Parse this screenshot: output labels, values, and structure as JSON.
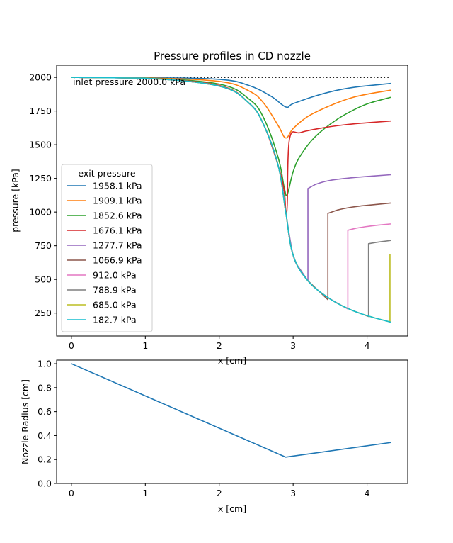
{
  "chart_data": [
    {
      "type": "line",
      "title": "Pressure profiles in CD nozzle",
      "xlabel": "x [cm]",
      "ylabel": "pressure [kPa]",
      "xlim": [
        -0.2,
        4.55
      ],
      "ylim": [
        80,
        2090
      ],
      "xticks": [
        "0",
        "1",
        "2",
        "3",
        "4"
      ],
      "yticks": [
        "250",
        "500",
        "750",
        "1000",
        "1250",
        "1500",
        "1750",
        "2000"
      ],
      "grid": false,
      "legend_title": "exit pressure",
      "legend_position": "lower-left",
      "annotation": "inlet pressure 2000.0 kPa",
      "inlet_line": {
        "value": 2000,
        "x": [
          0,
          4.32
        ],
        "style": "dotted",
        "color": "#000000"
      },
      "common_branch": {
        "x": [
          0,
          0.5,
          1.0,
          1.5,
          1.8,
          2.0,
          2.2,
          2.4,
          2.5,
          2.6,
          2.7,
          2.8,
          2.85,
          2.9
        ],
        "y": [
          2000,
          1998,
          1994,
          1980,
          1960,
          1935,
          1890,
          1810,
          1745,
          1650,
          1520,
          1340,
          1230,
          1000
        ]
      },
      "supersonic_branch": {
        "x": [
          2.9,
          2.95,
          3.0,
          3.1,
          3.2,
          3.3,
          3.5,
          3.7,
          3.9,
          4.1,
          4.32
        ],
        "y": [
          1000,
          780,
          680,
          570,
          490,
          435,
          355,
          295,
          250,
          215,
          180
        ]
      },
      "series": [
        {
          "name": "1958.1 kPa",
          "color": "#1f77b4",
          "x": [
            0,
            1.0,
            2.0,
            2.4,
            2.7,
            2.9,
            3.0,
            3.3,
            3.6,
            3.9,
            4.32
          ],
          "y": [
            2000,
            1998,
            1985,
            1940,
            1860,
            1780,
            1805,
            1862,
            1905,
            1932,
            1955
          ]
        },
        {
          "name": "1909.1 kPa",
          "color": "#ff7f0e",
          "x": [
            0,
            1.0,
            2.0,
            2.4,
            2.6,
            2.8,
            2.9,
            3.0,
            3.2,
            3.5,
            3.8,
            4.1,
            4.32
          ],
          "y": [
            2000,
            1996,
            1970,
            1900,
            1810,
            1640,
            1550,
            1620,
            1710,
            1790,
            1850,
            1885,
            1905
          ]
        },
        {
          "name": "1852.6 kPa",
          "color": "#2ca02c",
          "x": [
            0,
            1.0,
            2.0,
            2.4,
            2.6,
            2.8,
            2.88,
            2.92,
            3.0,
            3.1,
            3.3,
            3.6,
            3.9,
            4.1,
            4.32
          ],
          "y": [
            2000,
            1995,
            1950,
            1840,
            1700,
            1400,
            1180,
            1130,
            1300,
            1420,
            1560,
            1690,
            1780,
            1820,
            1852
          ]
        },
        {
          "name": "1676.1 kPa",
          "color": "#d62728",
          "x": [
            0,
            1.0,
            2.0,
            2.4,
            2.6,
            2.8,
            2.88,
            2.9,
            2.92,
            2.95,
            3.1,
            3.4,
            3.7,
            4.0,
            4.32
          ],
          "y": [
            2000,
            1994,
            1940,
            1810,
            1650,
            1340,
            1150,
            1000,
            1050,
            1540,
            1590,
            1625,
            1648,
            1663,
            1676
          ]
        },
        {
          "name": "1277.7 kPa",
          "color": "#9467bd",
          "x": [
            0,
            1.0,
            2.0,
            2.4,
            2.6,
            2.8,
            2.9,
            3.0,
            3.1,
            3.2,
            3.2,
            3.3,
            3.5,
            3.8,
            4.1,
            4.32
          ],
          "y": [
            2000,
            1994,
            1935,
            1810,
            1650,
            1340,
            1000,
            680,
            570,
            490,
            1175,
            1205,
            1235,
            1255,
            1268,
            1277
          ]
        },
        {
          "name": "1066.9 kPa",
          "color": "#8c564b",
          "x": [
            0,
            1.0,
            2.0,
            2.4,
            2.6,
            2.8,
            2.9,
            3.0,
            3.2,
            3.47,
            3.47,
            3.6,
            3.8,
            4.0,
            4.32
          ],
          "y": [
            2000,
            1994,
            1935,
            1810,
            1650,
            1340,
            1000,
            680,
            490,
            350,
            990,
            1015,
            1037,
            1050,
            1067
          ]
        },
        {
          "name": "912.0 kPa",
          "color": "#e377c2",
          "x": [
            0,
            1.0,
            2.0,
            2.4,
            2.6,
            2.8,
            2.9,
            3.0,
            3.2,
            3.5,
            3.74,
            3.74,
            3.85,
            4.0,
            4.15,
            4.32
          ],
          "y": [
            2000,
            1994,
            1935,
            1810,
            1650,
            1340,
            1000,
            680,
            490,
            355,
            280,
            865,
            880,
            893,
            903,
            912
          ]
        },
        {
          "name": "788.9 kPa",
          "color": "#7f7f7f",
          "x": [
            0,
            1.0,
            2.0,
            2.4,
            2.6,
            2.8,
            2.9,
            3.0,
            3.2,
            3.5,
            3.8,
            4.02,
            4.02,
            4.1,
            4.2,
            4.32
          ],
          "y": [
            2000,
            1994,
            1935,
            1810,
            1650,
            1340,
            1000,
            680,
            490,
            355,
            270,
            225,
            765,
            773,
            781,
            789
          ]
        },
        {
          "name": "685.0 kPa",
          "color": "#bcbd22",
          "x": [
            0,
            1.0,
            2.0,
            2.4,
            2.6,
            2.8,
            2.9,
            3.0,
            3.2,
            3.5,
            3.8,
            4.1,
            4.31,
            4.31
          ],
          "y": [
            2000,
            1994,
            1935,
            1810,
            1650,
            1340,
            1000,
            680,
            490,
            355,
            270,
            215,
            185,
            685
          ]
        },
        {
          "name": "182.7 kPa",
          "color": "#17becf",
          "x": [
            0,
            1.0,
            2.0,
            2.4,
            2.6,
            2.8,
            2.9,
            3.0,
            3.2,
            3.5,
            3.8,
            4.1,
            4.32
          ],
          "y": [
            2000,
            1994,
            1935,
            1810,
            1650,
            1340,
            1000,
            680,
            490,
            355,
            270,
            215,
            183
          ]
        }
      ]
    },
    {
      "type": "line",
      "xlabel": "x [cm]",
      "ylabel": "Nozzle Radius [cm]",
      "xlim": [
        -0.2,
        4.55
      ],
      "ylim": [
        0,
        1.03
      ],
      "xticks": [
        "0",
        "1",
        "2",
        "3",
        "4"
      ],
      "yticks": [
        "0.0",
        "0.2",
        "0.4",
        "0.6",
        "0.8",
        "1.0"
      ],
      "grid": false,
      "series": [
        {
          "color": "#1f77b4",
          "x": [
            0,
            2.9,
            4.32
          ],
          "y": [
            1.0,
            0.22,
            0.342
          ]
        }
      ]
    }
  ]
}
